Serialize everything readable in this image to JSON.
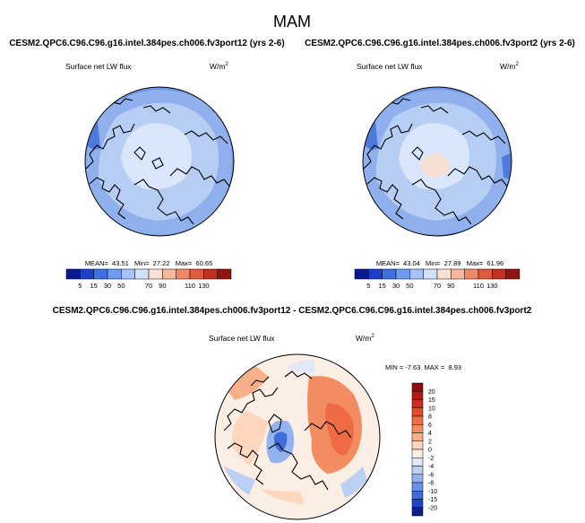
{
  "page_title": "MAM",
  "panels": [
    {
      "title": "CESM2.QPC6.C96.C96.g16.intel.384pes.ch006.fv3port12 (yrs 2-6)",
      "variable": "Surface net LW flux",
      "units_base": "W/m",
      "units_exp": "2",
      "stats_text": "MEAN=  43.51   Min=  27.22   Max=  60.65",
      "mean": 43.51,
      "min": 27.22,
      "max": 60.65
    },
    {
      "title": "CESM2.QPC6.C96.C96.g16.intel.384pes.ch006.fv3port2 (yrs 2-6)",
      "variable": "Surface net LW flux",
      "units_base": "W/m",
      "units_exp": "2",
      "stats_text": "MEAN=  43.04   Min=  27.89   Max=  61.96",
      "mean": 43.04,
      "min": 27.89,
      "max": 61.96
    }
  ],
  "colorbar_top": {
    "labels": [
      "5",
      "15",
      "30",
      "50",
      "70",
      "90",
      "110",
      "130"
    ],
    "colors": [
      "#0a1a8c",
      "#1e40c8",
      "#3d6fe0",
      "#6e9af0",
      "#a5c3f7",
      "#d3e2fb",
      "#f7e1d5",
      "#f6b9a0",
      "#ee8867",
      "#e05a3d",
      "#c2301f",
      "#8e1510"
    ]
  },
  "diff_panel": {
    "title": "CESM2.QPC6.C96.C96.g16.intel.384pes.ch006.fv3port12 - CESM2.QPC6.C96.C96.g16.intel.384pes.ch006.fv3port2",
    "variable": "Surface net LW flux",
    "units_base": "W/m",
    "units_exp": "2",
    "minmax_text": "MIN = -7.63  MAX =  8.93",
    "min": -7.63,
    "max": 8.93
  },
  "colorbar_diff": {
    "labels": [
      "20",
      "15",
      "10",
      "8",
      "6",
      "4",
      "2",
      "0",
      "-2",
      "-4",
      "-6",
      "-8",
      "-10",
      "-15",
      "-20"
    ],
    "colors": [
      "#8e0c0c",
      "#b21a14",
      "#d02d1c",
      "#e54a2a",
      "#ef6b43",
      "#f48c62",
      "#f8b08b",
      "#fcd6bd",
      "#fbeee4",
      "#dfe7f8",
      "#bcd0f4",
      "#93b3ee",
      "#6a92e6",
      "#3f6bdb",
      "#1f45c4",
      "#0f1f8a"
    ]
  },
  "colors": {
    "ocean_light": "#b6cdf4",
    "ocean_mid": "#8fb0ec",
    "ocean_outer": "#6f96e4",
    "ocean_edge": "#4e7bdb",
    "pole": "#d9e6fb",
    "warm_patch": "#f7e1d3"
  }
}
